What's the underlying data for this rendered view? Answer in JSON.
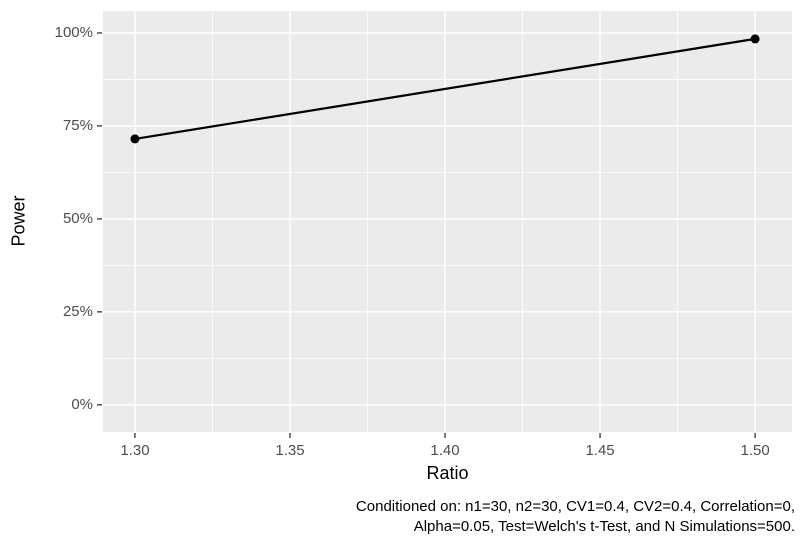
{
  "chart_data": {
    "type": "line",
    "xlabel": "Ratio",
    "ylabel": "Power",
    "x": [
      1.3,
      1.5
    ],
    "values": [
      71.5,
      98.4
    ],
    "series": [
      {
        "name": "Power",
        "x": [
          1.3,
          1.5
        ],
        "y_percent": [
          71.5,
          98.4
        ]
      }
    ],
    "x_ticks": [
      1.3,
      1.35,
      1.4,
      1.45,
      1.5
    ],
    "x_tick_labels": [
      "1.30",
      "1.35",
      "1.40",
      "1.45",
      "1.50"
    ],
    "x_minor_ticks": [
      1.325,
      1.375,
      1.425,
      1.475
    ],
    "y_ticks": [
      0,
      25,
      50,
      75,
      100
    ],
    "y_tick_labels": [
      "0%",
      "25%",
      "50%",
      "75%",
      "100%"
    ],
    "y_minor_ticks": [
      12.5,
      37.5,
      62.5,
      87.5
    ],
    "xlim": [
      1.2897,
      1.5119
    ],
    "ylim": [
      -7.3,
      105.9
    ],
    "grid": "major-and-minor-white-on-gray",
    "legend_position": "none"
  },
  "caption": {
    "line1": "Conditioned on: n1=30, n2=30, CV1=0.4, CV2=0.4, Correlation=0,",
    "line2": "Alpha=0.05, Test=Welch's t-Test, and N Simulations=500."
  },
  "colors": {
    "background": "#FFFFFF",
    "panel_background": "#EBEBEB",
    "grid": "#FFFFFF",
    "line": "#000000",
    "point": "#000000",
    "tick_label": "#4D4D4D",
    "axis_title": "#000000",
    "tick_mark": "#333333",
    "caption_text": "#000000"
  }
}
